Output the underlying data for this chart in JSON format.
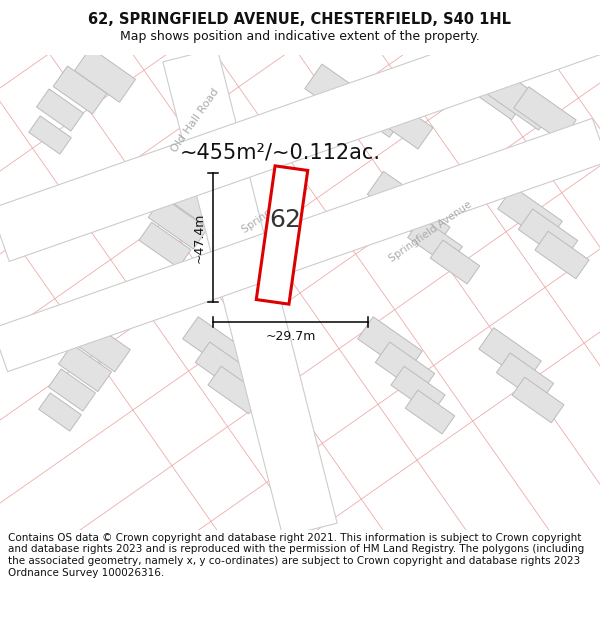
{
  "title": "62, SPRINGFIELD AVENUE, CHESTERFIELD, S40 1HL",
  "subtitle": "Map shows position and indicative extent of the property.",
  "footer": "Contains OS data © Crown copyright and database right 2021. This information is subject to Crown copyright and database rights 2023 and is reproduced with the permission of HM Land Registry. The polygons (including the associated geometry, namely x, y co-ordinates) are subject to Crown copyright and database rights 2023 Ordnance Survey 100026316.",
  "area_label": "~455m²/~0.112ac.",
  "width_label": "~29.7m",
  "height_label": "~47.4m",
  "property_number": "62",
  "map_bg": "#f7f7f7",
  "road_line_color": "#f0aaaa",
  "building_fill": "#e2e2e2",
  "building_stroke": "#bbbbbb",
  "road_fill": "#ffffff",
  "road_border": "#cccccc",
  "property_stroke": "#dd0000",
  "property_fill": "#ffffff",
  "annotation_color": "#111111",
  "street_label_color": "#aaaaaa",
  "title_color": "#111111",
  "footer_color": "#111111",
  "title_fontsize": 10.5,
  "subtitle_fontsize": 9,
  "footer_fontsize": 7.5,
  "area_fontsize": 15,
  "number_fontsize": 18,
  "dim_fontsize": 9
}
